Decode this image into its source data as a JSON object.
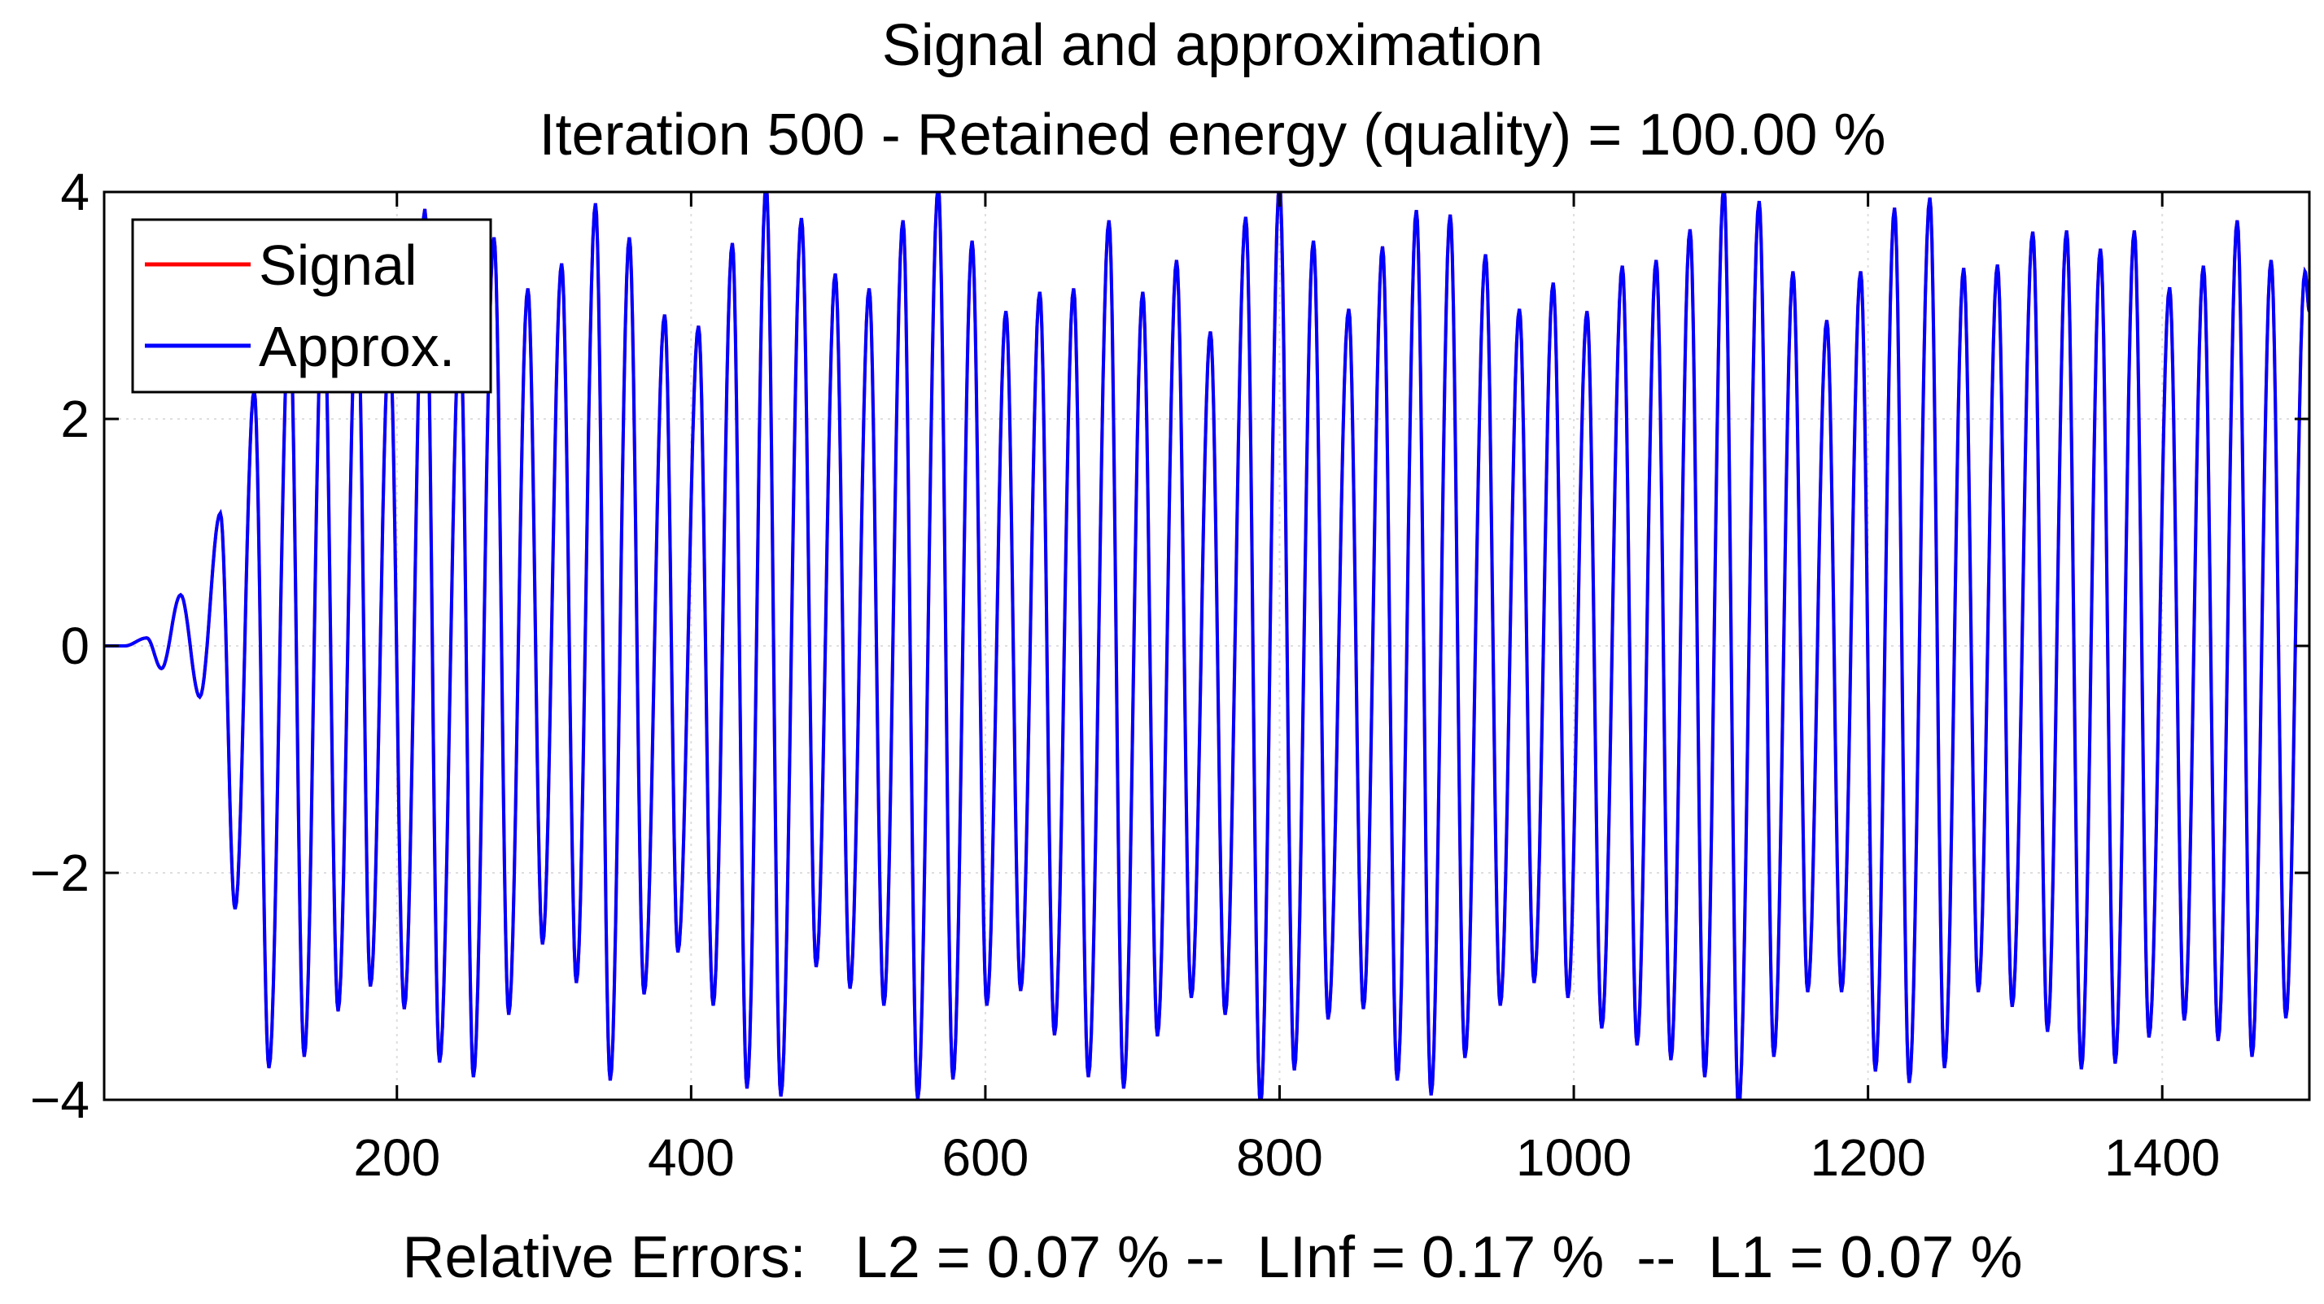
{
  "chart_data": {
    "type": "line",
    "title": "Signal and approximation",
    "subtitle": "Iteration 500 - Retained energy (quality) = 100.00 %",
    "xlabel": "Relative Errors:   L2 = 0.07 % --  LInf = 0.17 %  --  L1 = 0.07 %",
    "ylabel": "",
    "xlim": [
      1,
      1500
    ],
    "ylim": [
      -4,
      4
    ],
    "xticks": [
      200,
      400,
      600,
      800,
      1000,
      1200,
      1400
    ],
    "xtick_labels": [
      "200",
      "400",
      "600",
      "800",
      "1000",
      "1200",
      "1400"
    ],
    "yticks": [
      -4,
      -2,
      0,
      2,
      4
    ],
    "ytick_labels": [
      "−4",
      "−2",
      "0",
      "2",
      "4"
    ],
    "grid": true,
    "legend_position": "top-left",
    "series": [
      {
        "name": "Signal",
        "color": "#ff0000",
        "extrema": [
          [
            1,
            0
          ],
          [
            15,
            0
          ],
          [
            30,
            0.07
          ],
          [
            40,
            -0.2
          ],
          [
            53,
            0.45
          ],
          [
            66,
            -0.45
          ],
          [
            80,
            1.17
          ],
          [
            90,
            -2.32
          ],
          [
            103,
            2.25
          ],
          [
            113,
            -3.72
          ],
          [
            127,
            2.9
          ],
          [
            137,
            -3.62
          ],
          [
            150,
            3.17
          ],
          [
            160,
            -3.22
          ],
          [
            173,
            3.1
          ],
          [
            182,
            -3.0
          ],
          [
            195,
            2.7
          ],
          [
            205,
            -3.2
          ],
          [
            219,
            3.85
          ],
          [
            229,
            -3.67
          ],
          [
            243,
            2.8
          ],
          [
            252,
            -3.8
          ],
          [
            266,
            3.6
          ],
          [
            276,
            -3.25
          ],
          [
            289,
            3.15
          ],
          [
            299,
            -2.63
          ],
          [
            312,
            3.37
          ],
          [
            322,
            -2.97
          ],
          [
            335,
            3.9
          ],
          [
            345,
            -3.83
          ],
          [
            358,
            3.6
          ],
          [
            368,
            -3.07
          ],
          [
            382,
            2.92
          ],
          [
            391,
            -2.7
          ],
          [
            405,
            2.82
          ],
          [
            415,
            -3.17
          ],
          [
            428,
            3.55
          ],
          [
            438,
            -3.9
          ],
          [
            451,
            4.07
          ],
          [
            461,
            -3.97
          ],
          [
            475,
            3.77
          ],
          [
            485,
            -2.83
          ],
          [
            498,
            3.28
          ],
          [
            508,
            -3.02
          ],
          [
            521,
            3.15
          ],
          [
            531,
            -3.17
          ],
          [
            544,
            3.75
          ],
          [
            554,
            -4.0
          ],
          [
            568,
            4.05
          ],
          [
            578,
            -3.82
          ],
          [
            591,
            3.57
          ],
          [
            601,
            -3.17
          ],
          [
            614,
            2.95
          ],
          [
            624,
            -3.04
          ],
          [
            637,
            3.12
          ],
          [
            647,
            -3.43
          ],
          [
            660,
            3.15
          ],
          [
            670,
            -3.8
          ],
          [
            684,
            3.75
          ],
          [
            694,
            -3.9
          ],
          [
            707,
            3.12
          ],
          [
            717,
            -3.44
          ],
          [
            730,
            3.4
          ],
          [
            740,
            -3.1
          ],
          [
            753,
            2.77
          ],
          [
            763,
            -3.25
          ],
          [
            777,
            3.78
          ],
          [
            787,
            -4.05
          ],
          [
            800,
            4.07
          ],
          [
            810,
            -3.74
          ],
          [
            823,
            3.57
          ],
          [
            833,
            -3.29
          ],
          [
            847,
            2.97
          ],
          [
            857,
            -3.2
          ],
          [
            870,
            3.52
          ],
          [
            880,
            -3.83
          ],
          [
            893,
            3.84
          ],
          [
            903,
            -3.96
          ],
          [
            916,
            3.8
          ],
          [
            926,
            -3.63
          ],
          [
            940,
            3.45
          ],
          [
            950,
            -3.17
          ],
          [
            963,
            2.97
          ],
          [
            973,
            -2.97
          ],
          [
            986,
            3.2
          ],
          [
            996,
            -3.1
          ],
          [
            1009,
            2.95
          ],
          [
            1019,
            -3.37
          ],
          [
            1033,
            3.35
          ],
          [
            1043,
            -3.52
          ],
          [
            1056,
            3.4
          ],
          [
            1066,
            -3.65
          ],
          [
            1079,
            3.67
          ],
          [
            1089,
            -3.8
          ],
          [
            1102,
            4.05
          ],
          [
            1112,
            -4.08
          ],
          [
            1126,
            3.92
          ],
          [
            1136,
            -3.62
          ],
          [
            1149,
            3.3
          ],
          [
            1159,
            -3.05
          ],
          [
            1172,
            2.87
          ],
          [
            1182,
            -3.05
          ],
          [
            1195,
            3.3
          ],
          [
            1205,
            -3.75
          ],
          [
            1218,
            3.86
          ],
          [
            1228,
            -3.85
          ],
          [
            1242,
            3.95
          ],
          [
            1252,
            -3.72
          ],
          [
            1265,
            3.33
          ],
          [
            1275,
            -3.05
          ],
          [
            1288,
            3.36
          ],
          [
            1298,
            -3.18
          ],
          [
            1312,
            3.65
          ],
          [
            1322,
            -3.4
          ],
          [
            1335,
            3.66
          ],
          [
            1345,
            -3.73
          ],
          [
            1358,
            3.5
          ],
          [
            1368,
            -3.68
          ],
          [
            1381,
            3.66
          ],
          [
            1391,
            -3.45
          ],
          [
            1405,
            3.16
          ],
          [
            1415,
            -3.3
          ],
          [
            1428,
            3.35
          ],
          [
            1438,
            -3.48
          ],
          [
            1451,
            3.75
          ],
          [
            1461,
            -3.62
          ],
          [
            1474,
            3.4
          ],
          [
            1484,
            -3.28
          ],
          [
            1497,
            3.3
          ],
          [
            1500,
            2.95
          ]
        ]
      },
      {
        "name": "Approx.",
        "color": "#0000ff",
        "same_as": "Signal"
      }
    ]
  }
}
